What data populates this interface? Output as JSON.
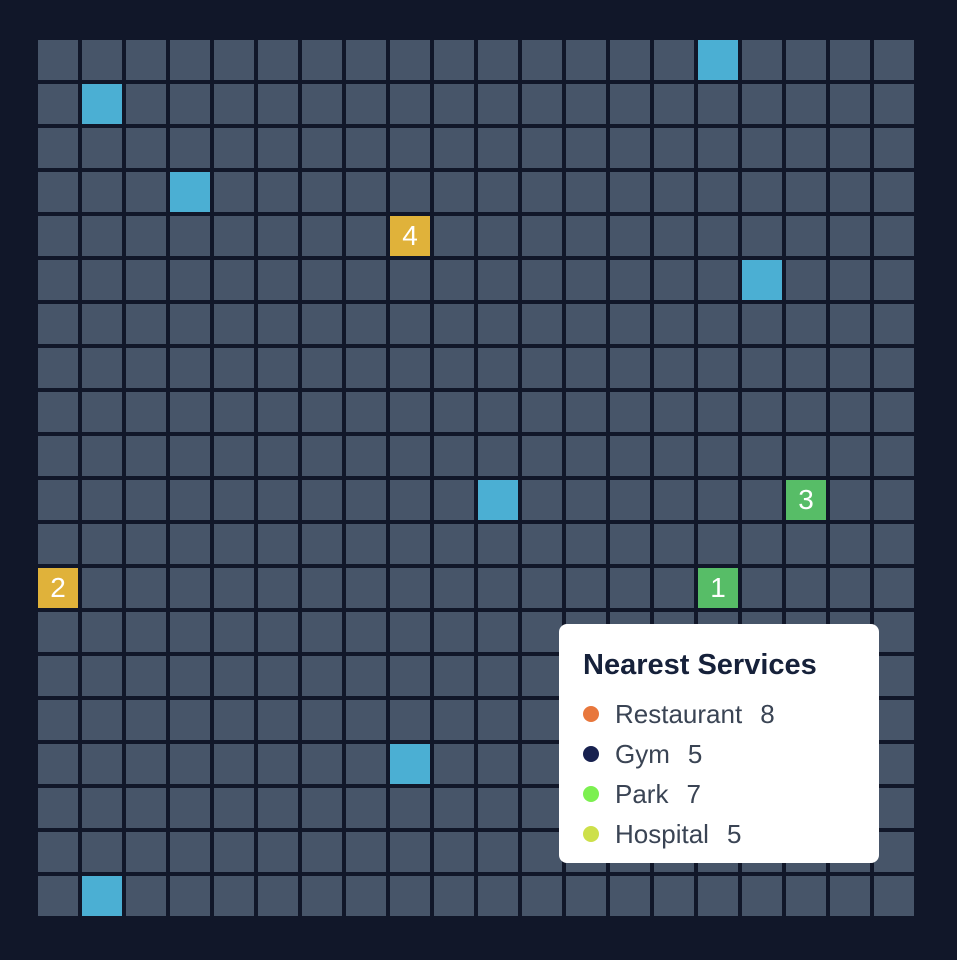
{
  "grid": {
    "cols": 20,
    "rows": 20,
    "colors": {
      "empty": "#475569",
      "water": "#4bafd3",
      "yellow": "#e0b23a",
      "green": "#57bd67",
      "background": "#111729"
    },
    "special_cells": [
      {
        "row": 0,
        "col": 15,
        "type": "water",
        "label": ""
      },
      {
        "row": 1,
        "col": 1,
        "type": "water",
        "label": ""
      },
      {
        "row": 3,
        "col": 3,
        "type": "water",
        "label": ""
      },
      {
        "row": 4,
        "col": 8,
        "type": "yellow",
        "label": "4"
      },
      {
        "row": 5,
        "col": 16,
        "type": "water",
        "label": ""
      },
      {
        "row": 10,
        "col": 10,
        "type": "water",
        "label": ""
      },
      {
        "row": 10,
        "col": 17,
        "type": "green",
        "label": "3"
      },
      {
        "row": 12,
        "col": 0,
        "type": "yellow",
        "label": "2"
      },
      {
        "row": 12,
        "col": 15,
        "type": "green",
        "label": "1"
      },
      {
        "row": 16,
        "col": 8,
        "type": "water",
        "label": ""
      },
      {
        "row": 19,
        "col": 1,
        "type": "water",
        "label": ""
      }
    ]
  },
  "legend": {
    "title": "Nearest Services",
    "items": [
      {
        "label": "Restaurant",
        "count": "8",
        "color": "#e8773c"
      },
      {
        "label": "Gym",
        "count": "5",
        "color": "#17214f"
      },
      {
        "label": "Park",
        "count": "7",
        "color": "#7cf050"
      },
      {
        "label": "Hospital",
        "count": "5",
        "color": "#cde04a"
      }
    ]
  }
}
